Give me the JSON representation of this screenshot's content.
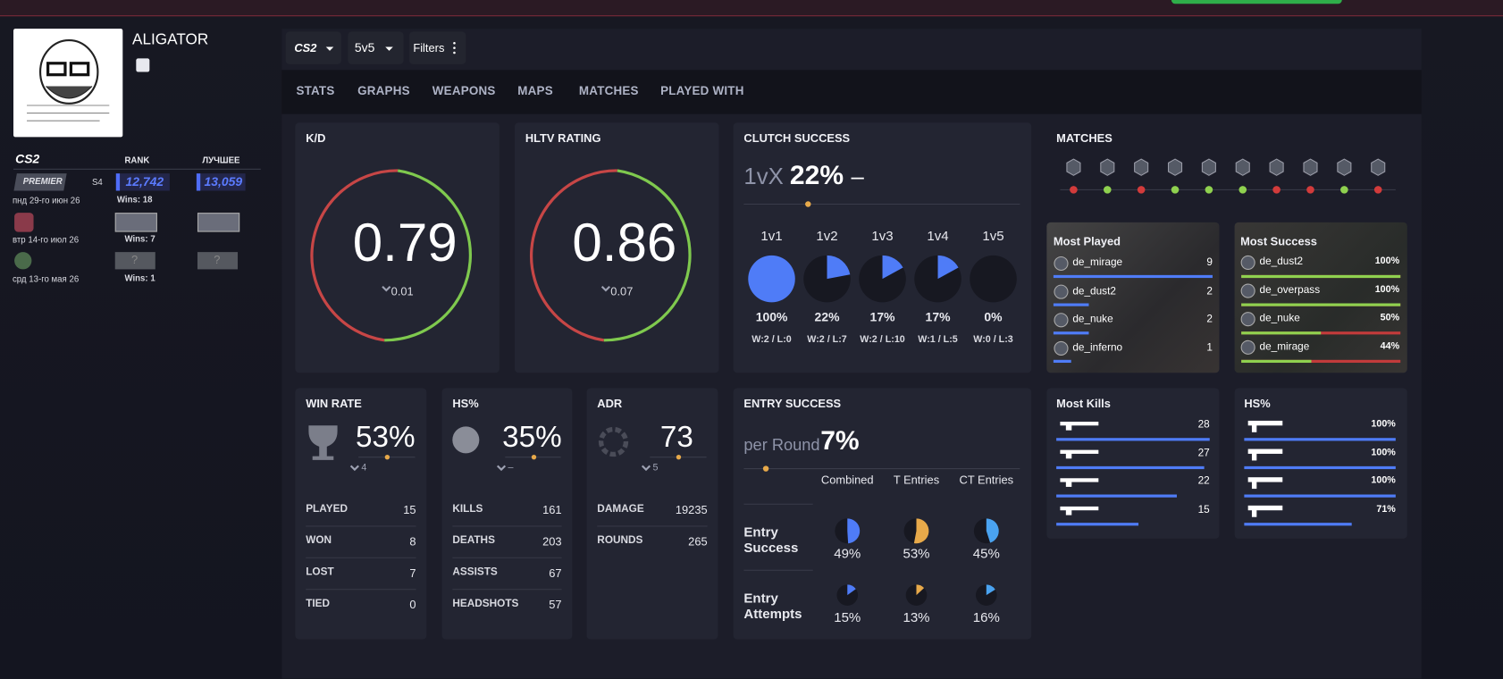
{
  "profile": {
    "name": "ALIGATOR"
  },
  "ranks": {
    "game": "CS2",
    "headers": [
      "RANK",
      "ЛУЧШЕЕ"
    ],
    "rows": [
      {
        "badge": "PREMIER",
        "season": "S4",
        "rank": "12,742",
        "best": "13,059",
        "date": "пнд 29-го июн 26",
        "wins": "Wins: 18"
      },
      {
        "date": "втр 14-го июл 26",
        "wins": "Wins: 7"
      },
      {
        "rank": "?",
        "best": "?",
        "date": "срд 13-го мая 26",
        "wins": "Wins: 1"
      }
    ]
  },
  "toolbar": {
    "game": "CS2",
    "mode": "5v5",
    "filters": "Filters"
  },
  "tabs": [
    "STATS",
    "GRAPHS",
    "WEAPONS",
    "MAPS",
    "MATCHES",
    "PLAYED WITH"
  ],
  "kd": {
    "title": "K/D",
    "value": "0.79",
    "change": "0.01"
  },
  "hltv": {
    "title": "HLTV RATING",
    "value": "0.86",
    "change": "0.07"
  },
  "clutch": {
    "title": "CLUTCH SUCCESS",
    "prefix": "1vX",
    "value": "22%",
    "trend": "–",
    "items": [
      {
        "name": "1v1",
        "value": 100,
        "label": "100%",
        "record": "W:2 / L:0"
      },
      {
        "name": "1v2",
        "value": 22,
        "label": "22%",
        "record": "W:2 / L:7"
      },
      {
        "name": "1v3",
        "value": 17,
        "label": "17%",
        "record": "W:2 / L:10"
      },
      {
        "name": "1v4",
        "value": 17,
        "label": "17%",
        "record": "W:1 / L:5"
      },
      {
        "name": "1v5",
        "value": 0,
        "label": "0%",
        "record": "W:0 / L:3"
      }
    ]
  },
  "matches": {
    "title": "MATCHES",
    "result_colors": [
      "#d23b3b",
      "#8fd14f",
      "#d23b3b",
      "#8fd14f",
      "#8fd14f",
      "#8fd14f",
      "#d23b3b",
      "#d23b3b",
      "#8fd14f",
      "#d23b3b"
    ]
  },
  "most_played": {
    "title": "Most Played",
    "rows": [
      {
        "map": "de_mirage",
        "count": 9
      },
      {
        "map": "de_dust2",
        "count": 2
      },
      {
        "map": "de_nuke",
        "count": 2
      },
      {
        "map": "de_inferno",
        "count": 1
      }
    ]
  },
  "most_success": {
    "title": "Most Success",
    "rows": [
      {
        "map": "de_dust2",
        "value": 100,
        "label": "100%"
      },
      {
        "map": "de_overpass",
        "value": 100,
        "label": "100%"
      },
      {
        "map": "de_nuke",
        "value": 50,
        "label": "50%"
      },
      {
        "map": "de_mirage",
        "value": 44,
        "label": "44%"
      }
    ]
  },
  "win_rate": {
    "title": "WIN RATE",
    "value": "53%",
    "change": "4",
    "rows": [
      [
        "PLAYED",
        "15"
      ],
      [
        "WON",
        "8"
      ],
      [
        "LOST",
        "7"
      ],
      [
        "TIED",
        "0"
      ]
    ]
  },
  "hs": {
    "title": "HS%",
    "value": "35%",
    "change": "–",
    "rows": [
      [
        "KILLS",
        "161"
      ],
      [
        "DEATHS",
        "203"
      ],
      [
        "ASSISTS",
        "67"
      ],
      [
        "HEADSHOTS",
        "57"
      ]
    ]
  },
  "adr": {
    "title": "ADR",
    "value": "73",
    "change": "5",
    "rows": [
      [
        "DAMAGE",
        "19235"
      ],
      [
        "ROUNDS",
        "265"
      ]
    ]
  },
  "entry": {
    "title": "ENTRY SUCCESS",
    "prefix": "per Round",
    "value": "7%",
    "columns": [
      "Combined",
      "T Entries",
      "CT Entries"
    ],
    "column_colors": [
      "#4f7cf7",
      "#e7a94a",
      "#4aa3f0"
    ],
    "rows": [
      {
        "name": "Entry Success",
        "cells": [
          {
            "value": 49,
            "label": "49%"
          },
          {
            "value": 53,
            "label": "53%"
          },
          {
            "value": 45,
            "label": "45%"
          }
        ]
      },
      {
        "name": "Entry Attempts",
        "cells": [
          {
            "value": 15,
            "label": "15%"
          },
          {
            "value": 13,
            "label": "13%"
          },
          {
            "value": 16,
            "label": "16%"
          }
        ]
      }
    ]
  },
  "most_kills": {
    "title": "Most Kills",
    "values": [
      28,
      27,
      22,
      15
    ]
  },
  "weapon_hs": {
    "title": "HS%",
    "rows": [
      {
        "value": 100,
        "label": "100%"
      },
      {
        "value": 100,
        "label": "100%"
      },
      {
        "value": 100,
        "label": "100%"
      },
      {
        "value": 71,
        "label": "71%"
      }
    ]
  }
}
